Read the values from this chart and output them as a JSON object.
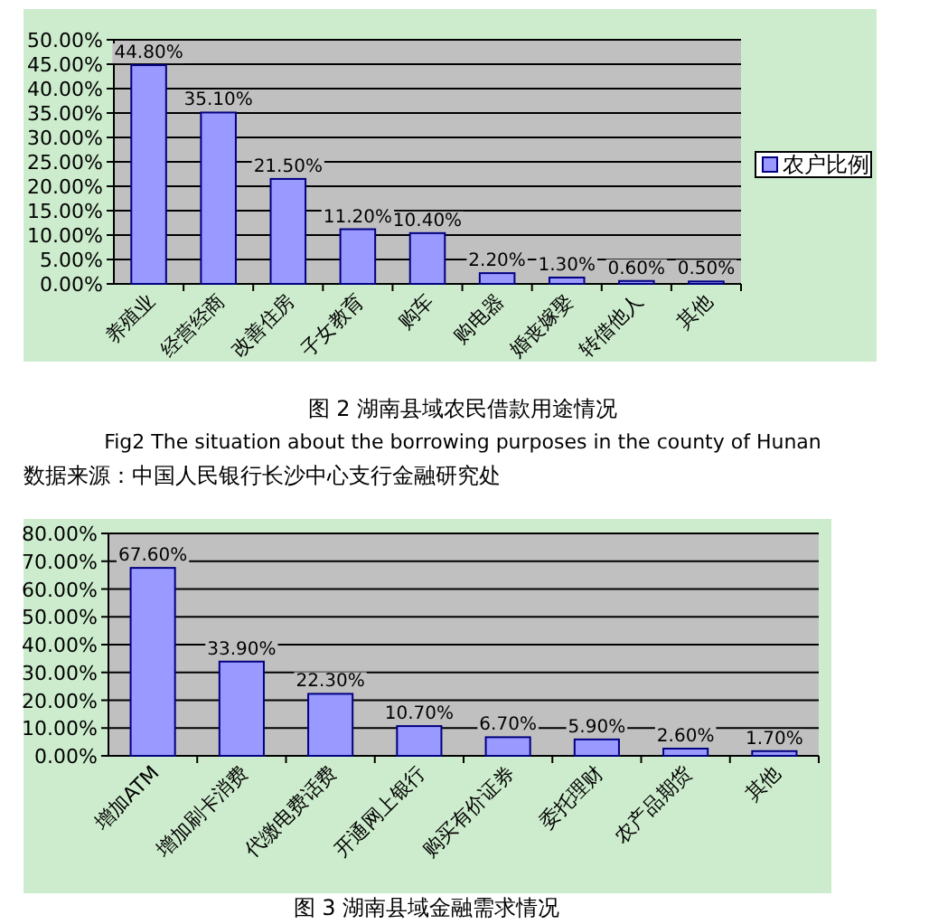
{
  "chart_data": [
    {
      "type": "bar",
      "categories": [
        "养殖业",
        "经营经商",
        "改善住房",
        "子女教育",
        "购车",
        "购电器",
        "婚丧嫁娶",
        "转借他人",
        "其他"
      ],
      "series": [
        {
          "name": "农户比例",
          "color": "#9999ff",
          "values": [
            44.8,
            35.1,
            21.5,
            11.2,
            10.4,
            2.2,
            1.3,
            0.6,
            0.5
          ],
          "value_labels": [
            "44.80%",
            "35.10%",
            "21.50%",
            "11.20%",
            "10.40%",
            "2.20%",
            "1.30%",
            "0.60%",
            "0.50%"
          ]
        }
      ],
      "ylim": [
        0,
        50
      ],
      "yticks": [
        {
          "value": 0,
          "label": "0.00%"
        },
        {
          "value": 5,
          "label": "5.00%"
        },
        {
          "value": 10,
          "label": "10.00%"
        },
        {
          "value": 15,
          "label": "15.00%"
        },
        {
          "value": 20,
          "label": "20.00%"
        },
        {
          "value": 25,
          "label": "25.00%"
        },
        {
          "value": 30,
          "label": "30.00%"
        },
        {
          "value": 35,
          "label": "35.00%"
        },
        {
          "value": 40,
          "label": "40.00%"
        },
        {
          "value": 45,
          "label": "45.00%"
        },
        {
          "value": 50,
          "label": "50.00%"
        }
      ],
      "grid": "y",
      "legend": "right",
      "annotations": [
        "图 2 湖南县域农民借款用途情况",
        "Fig2    The situation about the borrowing purposes in the county of Hunan",
        "数据来源：中国人民银行长沙中心支行金融研究处"
      ]
    },
    {
      "type": "bar",
      "categories": [
        "增加ATM",
        "增加刷卡消费",
        "代缴电费话费",
        "开通网上银行",
        "购买有价证券",
        "委托理财",
        "农产品期货",
        "其他"
      ],
      "series": [
        {
          "color": "#9999ff",
          "values": [
            67.6,
            33.9,
            22.3,
            10.7,
            6.7,
            5.9,
            2.6,
            1.7
          ],
          "value_labels": [
            "67.60%",
            "33.90%",
            "22.30%",
            "10.70%",
            "6.70%",
            "5.90%",
            "2.60%",
            "1.70%"
          ]
        }
      ],
      "ylim": [
        0,
        80
      ],
      "yticks": [
        {
          "value": 0,
          "label": "0.00%"
        },
        {
          "value": 10,
          "label": "10.00%"
        },
        {
          "value": 20,
          "label": "20.00%"
        },
        {
          "value": 30,
          "label": "30.00%"
        },
        {
          "value": 40,
          "label": "40.00%"
        },
        {
          "value": 50,
          "label": "50.00%"
        },
        {
          "value": 60,
          "label": "60.00%"
        },
        {
          "value": 70,
          "label": "70.00%"
        },
        {
          "value": 80,
          "label": "80.00%"
        }
      ],
      "grid": "y",
      "legend": false,
      "annotations": [
        "图 3 湖南县域金融需求情况"
      ]
    }
  ]
}
